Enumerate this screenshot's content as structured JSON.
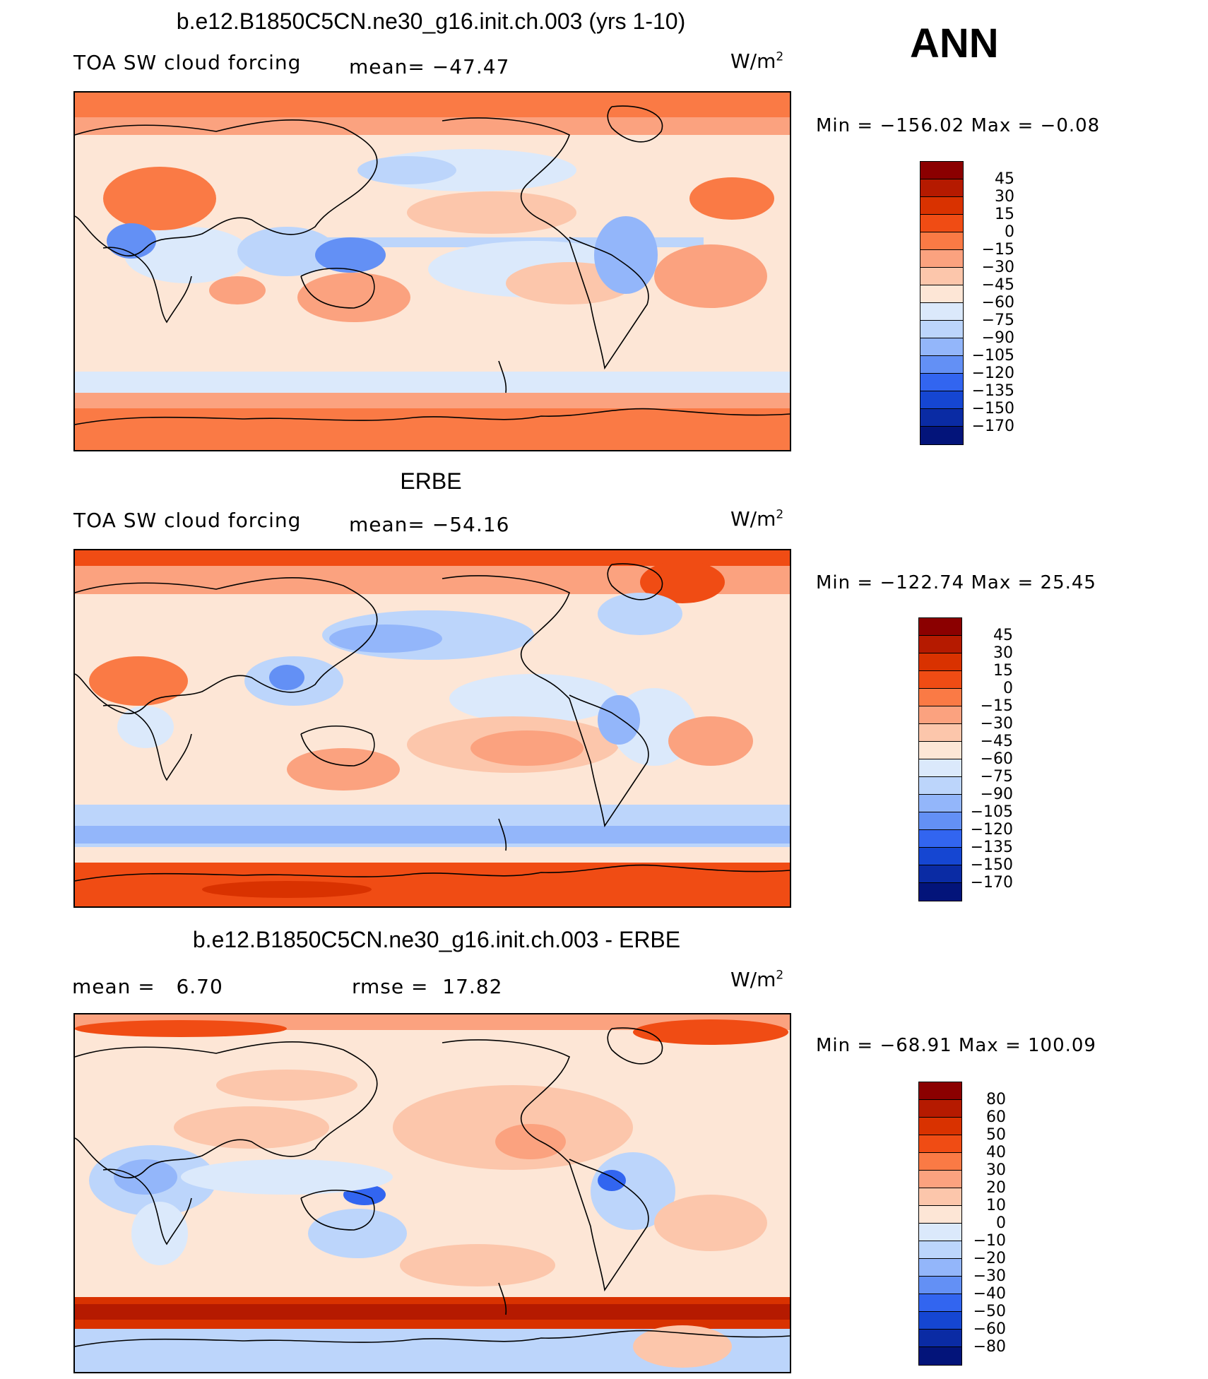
{
  "season": "ANN",
  "panels": [
    {
      "title": "b.e12.B1850C5CN.ne30_g16.init.ch.003 (yrs 1-10)",
      "left_label": "TOA SW cloud forcing",
      "center_label": "mean= −47.47",
      "units": "W/m",
      "units_sup": "2",
      "minmax": "Min = −156.02 Max =  −0.08",
      "scale": "abs"
    },
    {
      "title": "ERBE",
      "left_label": "TOA SW cloud forcing",
      "center_label": "mean= −54.16",
      "units": "W/m",
      "units_sup": "2",
      "minmax": "Min = −122.74 Max =  25.45",
      "scale": "abs"
    },
    {
      "title": "b.e12.B1850C5CN.ne30_g16.init.ch.003 - ERBE",
      "left_label": "mean =   6.70",
      "center_label": "rmse =  17.82",
      "units": "W/m",
      "units_sup": "2",
      "minmax": "Min = −68.91 Max = 100.09",
      "scale": "diff"
    }
  ],
  "colorbars": {
    "abs": {
      "ticks": [
        "45",
        "30",
        "15",
        "0",
        "−15",
        "−30",
        "−45",
        "−60",
        "−75",
        "−90",
        "−105",
        "−120",
        "−135",
        "−150",
        "−170"
      ],
      "colors": [
        "#8b0000",
        "#b51a00",
        "#d93200",
        "#f04c14",
        "#fa7a45",
        "#fba27f",
        "#fcc6ab",
        "#fde6d6",
        "#dbe9fb",
        "#bcd5fb",
        "#93b6fa",
        "#6390f5",
        "#3265f0",
        "#1546d2",
        "#0a2ba4",
        "#03147a"
      ]
    },
    "diff": {
      "ticks": [
        "80",
        "60",
        "50",
        "40",
        "30",
        "20",
        "10",
        "0",
        "−10",
        "−20",
        "−30",
        "−40",
        "−50",
        "−60",
        "−80"
      ],
      "colors": [
        "#8b0000",
        "#b51a00",
        "#d93200",
        "#f04c14",
        "#fa7a45",
        "#fba27f",
        "#fcc6ab",
        "#fde6d6",
        "#dbe9fb",
        "#bcd5fb",
        "#93b6fa",
        "#6390f5",
        "#3265f0",
        "#1546d2",
        "#0a2ba4",
        "#03147a"
      ]
    }
  }
}
